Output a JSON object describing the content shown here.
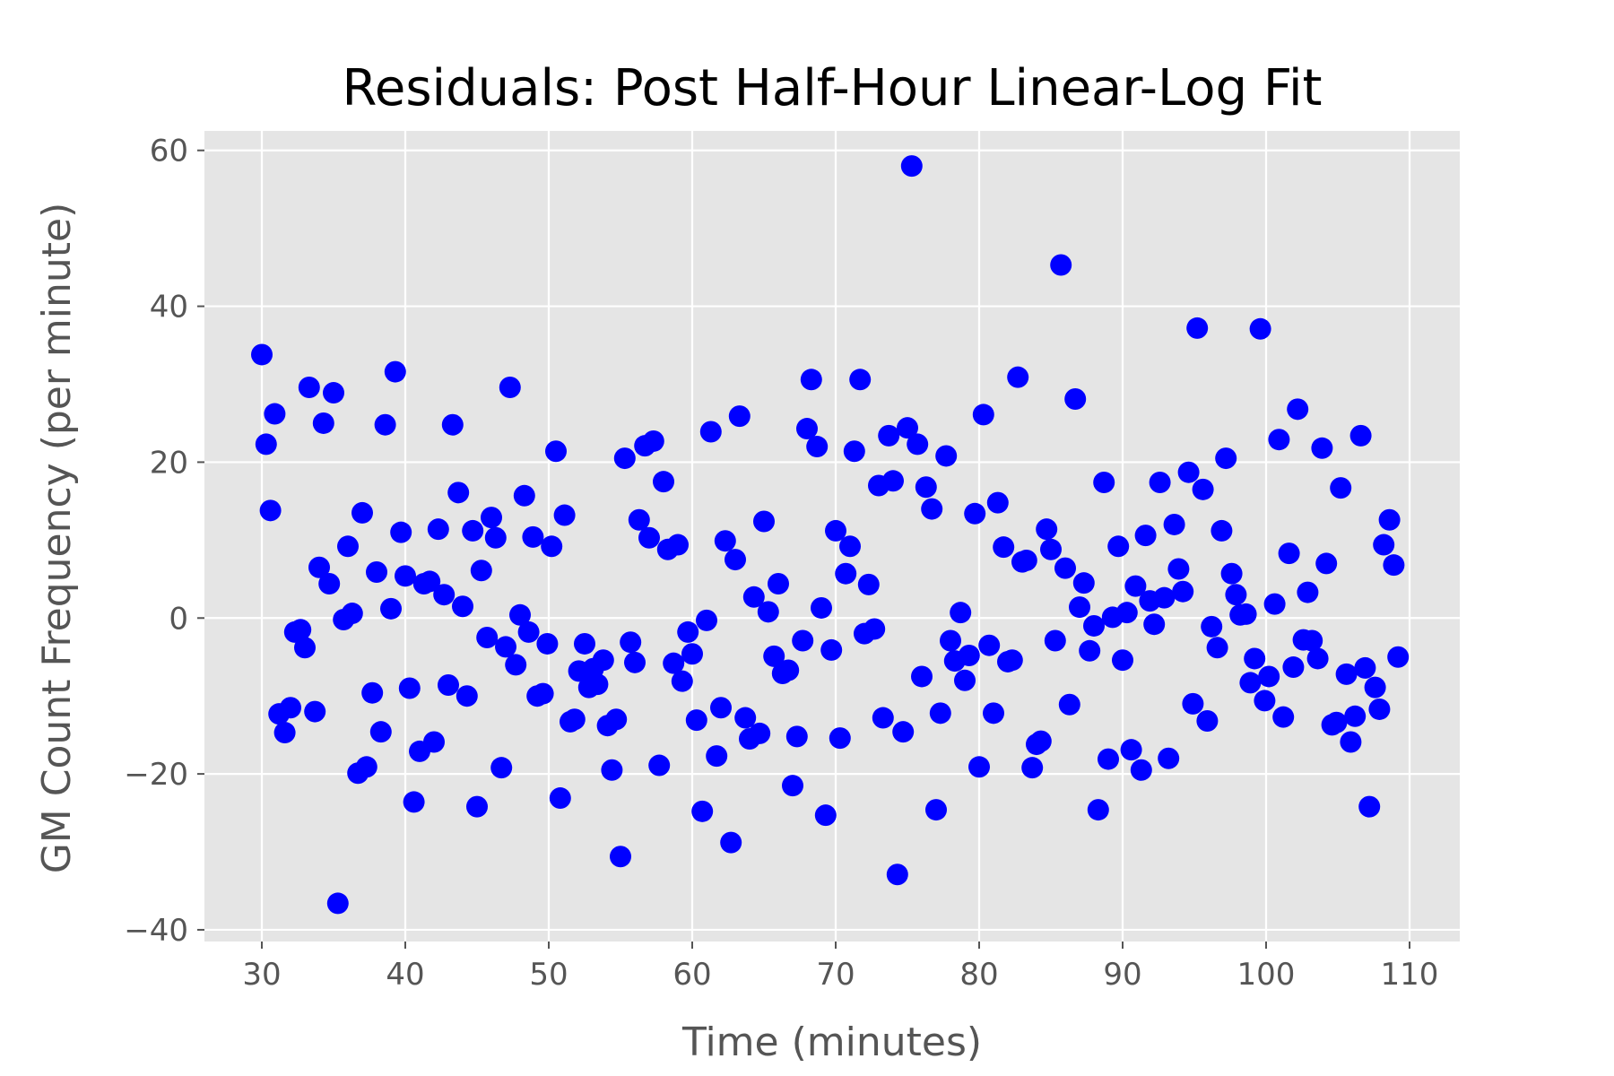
{
  "chart_data": {
    "type": "scatter",
    "title": "Residuals: Post Half-Hour Linear-Log Fit",
    "xlabel": "Time (minutes)",
    "ylabel": "GM Count Frequency (per minute)",
    "xlim": [
      26.0,
      113.5
    ],
    "ylim": [
      -41.5,
      62.5
    ],
    "x_ticks": [
      30,
      40,
      50,
      60,
      70,
      80,
      90,
      100,
      110
    ],
    "y_ticks": [
      -40,
      -20,
      0,
      20,
      40,
      60
    ],
    "x_tick_labels": [
      "30",
      "40",
      "50",
      "60",
      "70",
      "80",
      "90",
      "100",
      "110"
    ],
    "y_tick_labels": [
      "−40",
      "−20",
      "0",
      "20",
      "40",
      "60"
    ],
    "grid": true,
    "background_color": "#e5e5e5",
    "marker_color": "#0000ff",
    "series": [
      {
        "points": [
          [
            30.0,
            33.8
          ],
          [
            30.3,
            22.3
          ],
          [
            30.6,
            13.8
          ],
          [
            30.9,
            26.2
          ],
          [
            31.2,
            -12.3
          ],
          [
            31.6,
            -14.7
          ],
          [
            32.0,
            -11.5
          ],
          [
            32.3,
            -1.8
          ],
          [
            32.7,
            -1.5
          ],
          [
            33.0,
            -3.8
          ],
          [
            33.3,
            29.6
          ],
          [
            33.7,
            -12.0
          ],
          [
            34.0,
            6.5
          ],
          [
            34.3,
            25.0
          ],
          [
            34.7,
            4.4
          ],
          [
            35.0,
            28.9
          ],
          [
            35.3,
            -36.6
          ],
          [
            35.7,
            -0.2
          ],
          [
            36.0,
            9.2
          ],
          [
            36.3,
            0.6
          ],
          [
            36.7,
            -19.9
          ],
          [
            37.0,
            13.5
          ],
          [
            37.3,
            -19.1
          ],
          [
            37.7,
            -9.6
          ],
          [
            38.0,
            5.9
          ],
          [
            38.3,
            -14.6
          ],
          [
            38.6,
            24.8
          ],
          [
            39.0,
            1.2
          ],
          [
            39.3,
            31.6
          ],
          [
            39.7,
            11.0
          ],
          [
            40.0,
            5.4
          ],
          [
            40.3,
            -9.0
          ],
          [
            40.6,
            -23.6
          ],
          [
            41.0,
            -17.1
          ],
          [
            41.3,
            4.4
          ],
          [
            41.7,
            4.7
          ],
          [
            42.0,
            -15.9
          ],
          [
            42.3,
            11.4
          ],
          [
            42.7,
            3.0
          ],
          [
            43.0,
            -8.6
          ],
          [
            43.3,
            24.8
          ],
          [
            43.7,
            16.1
          ],
          [
            44.0,
            1.5
          ],
          [
            44.3,
            -10.0
          ],
          [
            44.7,
            11.2
          ],
          [
            45.0,
            -24.2
          ],
          [
            45.3,
            6.1
          ],
          [
            45.7,
            -2.5
          ],
          [
            46.0,
            12.9
          ],
          [
            46.3,
            10.3
          ],
          [
            46.7,
            -19.2
          ],
          [
            47.0,
            -3.7
          ],
          [
            47.3,
            29.6
          ],
          [
            47.7,
            -6.0
          ],
          [
            48.0,
            0.4
          ],
          [
            48.3,
            15.7
          ],
          [
            48.6,
            -1.8
          ],
          [
            48.9,
            10.4
          ],
          [
            49.2,
            -10.0
          ],
          [
            49.6,
            -9.7
          ],
          [
            49.9,
            -3.3
          ],
          [
            50.2,
            9.2
          ],
          [
            50.5,
            21.4
          ],
          [
            50.8,
            -23.1
          ],
          [
            51.1,
            13.2
          ],
          [
            51.5,
            -13.3
          ],
          [
            51.8,
            -13.0
          ],
          [
            52.1,
            -6.8
          ],
          [
            52.5,
            -3.3
          ],
          [
            52.8,
            -8.9
          ],
          [
            53.1,
            -6.5
          ],
          [
            53.4,
            -8.5
          ],
          [
            53.8,
            -5.4
          ],
          [
            54.1,
            -13.8
          ],
          [
            54.4,
            -19.5
          ],
          [
            54.7,
            -13.0
          ],
          [
            55.0,
            -30.6
          ],
          [
            55.3,
            20.5
          ],
          [
            55.7,
            -3.1
          ],
          [
            56.0,
            -5.7
          ],
          [
            56.3,
            12.6
          ],
          [
            56.7,
            22.1
          ],
          [
            57.0,
            10.3
          ],
          [
            57.3,
            22.7
          ],
          [
            57.7,
            -18.9
          ],
          [
            58.0,
            17.5
          ],
          [
            58.3,
            8.8
          ],
          [
            58.7,
            -5.8
          ],
          [
            59.0,
            9.4
          ],
          [
            59.3,
            -8.1
          ],
          [
            59.7,
            -1.8
          ],
          [
            60.0,
            -4.6
          ],
          [
            60.3,
            -13.1
          ],
          [
            60.7,
            -24.8
          ],
          [
            61.0,
            -0.3
          ],
          [
            61.3,
            23.9
          ],
          [
            61.7,
            -17.7
          ],
          [
            62.0,
            -11.5
          ],
          [
            62.3,
            9.9
          ],
          [
            62.7,
            -28.8
          ],
          [
            63.0,
            7.5
          ],
          [
            63.3,
            25.9
          ],
          [
            63.7,
            -12.8
          ],
          [
            64.0,
            -15.5
          ],
          [
            64.3,
            2.7
          ],
          [
            64.7,
            -14.8
          ],
          [
            65.0,
            12.4
          ],
          [
            65.3,
            0.8
          ],
          [
            65.7,
            -4.9
          ],
          [
            66.0,
            4.4
          ],
          [
            66.3,
            -7.1
          ],
          [
            66.7,
            -6.7
          ],
          [
            67.0,
            -21.5
          ],
          [
            67.3,
            -15.2
          ],
          [
            67.7,
            -2.9
          ],
          [
            68.0,
            24.3
          ],
          [
            68.3,
            30.6
          ],
          [
            68.7,
            22.0
          ],
          [
            69.0,
            1.3
          ],
          [
            69.3,
            -25.3
          ],
          [
            69.7,
            -4.1
          ],
          [
            70.0,
            11.2
          ],
          [
            70.3,
            -15.4
          ],
          [
            70.7,
            5.7
          ],
          [
            71.0,
            9.2
          ],
          [
            71.3,
            21.4
          ],
          [
            71.7,
            30.6
          ],
          [
            72.0,
            -2.0
          ],
          [
            72.3,
            4.3
          ],
          [
            72.7,
            -1.4
          ],
          [
            73.0,
            17.0
          ],
          [
            73.3,
            -12.8
          ],
          [
            73.7,
            23.4
          ],
          [
            74.0,
            17.6
          ],
          [
            74.3,
            -32.9
          ],
          [
            74.7,
            -14.6
          ],
          [
            75.0,
            24.4
          ],
          [
            75.3,
            58.0
          ],
          [
            75.7,
            22.3
          ],
          [
            76.0,
            -7.5
          ],
          [
            76.3,
            16.8
          ],
          [
            76.7,
            14.0
          ],
          [
            77.0,
            -24.6
          ],
          [
            77.3,
            -12.2
          ],
          [
            77.7,
            20.8
          ],
          [
            78.0,
            -2.9
          ],
          [
            78.3,
            -5.5
          ],
          [
            78.7,
            0.7
          ],
          [
            79.0,
            -8.0
          ],
          [
            79.3,
            -4.8
          ],
          [
            79.7,
            13.4
          ],
          [
            80.0,
            -19.1
          ],
          [
            80.3,
            26.1
          ],
          [
            80.7,
            -3.5
          ],
          [
            81.0,
            -12.2
          ],
          [
            81.3,
            14.8
          ],
          [
            81.7,
            9.1
          ],
          [
            82.0,
            -5.6
          ],
          [
            82.3,
            -5.4
          ],
          [
            82.7,
            30.9
          ],
          [
            83.0,
            7.2
          ],
          [
            83.3,
            7.4
          ],
          [
            83.7,
            -19.2
          ],
          [
            84.0,
            -16.2
          ],
          [
            84.3,
            -15.8
          ],
          [
            84.7,
            11.4
          ],
          [
            85.0,
            8.8
          ],
          [
            85.3,
            -2.9
          ],
          [
            85.7,
            45.3
          ],
          [
            86.0,
            6.4
          ],
          [
            86.3,
            -11.1
          ],
          [
            86.7,
            28.1
          ],
          [
            87.0,
            1.4
          ],
          [
            87.3,
            4.5
          ],
          [
            87.7,
            -4.2
          ],
          [
            88.0,
            -1.0
          ],
          [
            88.3,
            -24.6
          ],
          [
            88.7,
            17.4
          ],
          [
            89.0,
            -18.1
          ],
          [
            89.3,
            0.1
          ],
          [
            89.7,
            9.2
          ],
          [
            90.0,
            -5.4
          ],
          [
            90.3,
            0.7
          ],
          [
            90.6,
            -16.9
          ],
          [
            90.9,
            4.1
          ],
          [
            91.3,
            -19.5
          ],
          [
            91.6,
            10.6
          ],
          [
            91.9,
            2.2
          ],
          [
            92.2,
            -0.8
          ],
          [
            92.6,
            17.4
          ],
          [
            92.9,
            2.6
          ],
          [
            93.2,
            -18.0
          ],
          [
            93.6,
            12.0
          ],
          [
            93.9,
            6.3
          ],
          [
            94.2,
            3.4
          ],
          [
            94.6,
            18.7
          ],
          [
            94.9,
            -11.0
          ],
          [
            95.2,
            37.2
          ],
          [
            95.6,
            16.5
          ],
          [
            95.9,
            -13.2
          ],
          [
            96.2,
            -1.1
          ],
          [
            96.6,
            -3.8
          ],
          [
            96.9,
            11.2
          ],
          [
            97.2,
            20.5
          ],
          [
            97.6,
            5.7
          ],
          [
            97.9,
            3.0
          ],
          [
            98.2,
            0.4
          ],
          [
            98.6,
            0.5
          ],
          [
            98.9,
            -8.3
          ],
          [
            99.2,
            -5.2
          ],
          [
            99.6,
            37.1
          ],
          [
            99.9,
            -10.6
          ],
          [
            100.2,
            -7.5
          ],
          [
            100.6,
            1.8
          ],
          [
            100.9,
            22.9
          ],
          [
            101.2,
            -12.7
          ],
          [
            101.6,
            8.3
          ],
          [
            101.9,
            -6.3
          ],
          [
            102.2,
            26.8
          ],
          [
            102.6,
            -2.8
          ],
          [
            102.9,
            3.3
          ],
          [
            103.2,
            -2.9
          ],
          [
            103.6,
            -5.2
          ],
          [
            103.9,
            21.8
          ],
          [
            104.2,
            7.0
          ],
          [
            104.6,
            -13.7
          ],
          [
            104.9,
            -13.4
          ],
          [
            105.2,
            16.7
          ],
          [
            105.6,
            -7.2
          ],
          [
            105.9,
            -15.9
          ],
          [
            106.2,
            -12.6
          ],
          [
            106.6,
            23.4
          ],
          [
            106.9,
            -6.4
          ],
          [
            107.2,
            -24.2
          ],
          [
            107.6,
            -8.9
          ],
          [
            107.9,
            -11.7
          ],
          [
            108.2,
            9.4
          ],
          [
            108.6,
            12.6
          ],
          [
            108.9,
            6.8
          ],
          [
            109.2,
            -5.0
          ]
        ]
      }
    ]
  }
}
